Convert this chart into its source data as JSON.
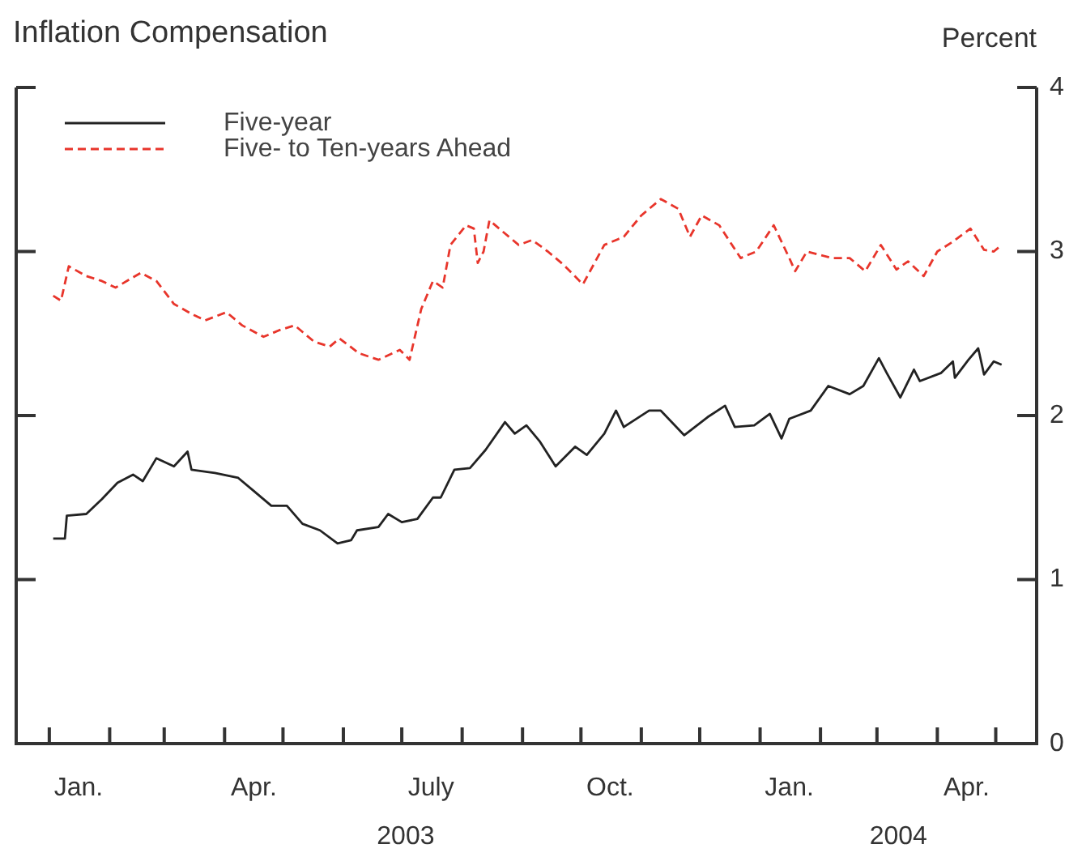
{
  "chart_data": {
    "type": "line",
    "title": "Inflation Compensation",
    "ylabel": "Percent",
    "xlim": [
      "2002-12-15",
      "2004-05-22"
    ],
    "ylim": [
      0,
      4
    ],
    "yticks": [
      0,
      1,
      2,
      3,
      4
    ],
    "xticks": [
      {
        "value": "2003-01-01",
        "label": null
      },
      {
        "value": "2003-01-16",
        "label": "Jan."
      },
      {
        "value": "2003-02-01",
        "label": null
      },
      {
        "value": "2003-03-01",
        "label": null
      },
      {
        "value": "2003-04-01",
        "label": null
      },
      {
        "value": "2003-04-16",
        "label": "Apr."
      },
      {
        "value": "2003-05-01",
        "label": null
      },
      {
        "value": "2003-06-01",
        "label": null
      },
      {
        "value": "2003-07-01",
        "label": null
      },
      {
        "value": "2003-07-16",
        "label": "July"
      },
      {
        "value": "2003-08-01",
        "label": null
      },
      {
        "value": "2003-09-01",
        "label": null
      },
      {
        "value": "2003-10-01",
        "label": null
      },
      {
        "value": "2003-10-16",
        "label": "Oct."
      },
      {
        "value": "2003-11-01",
        "label": null
      },
      {
        "value": "2003-12-01",
        "label": null
      },
      {
        "value": "2004-01-01",
        "label": null
      },
      {
        "value": "2004-01-16",
        "label": "Jan."
      },
      {
        "value": "2004-02-01",
        "label": null
      },
      {
        "value": "2004-03-01",
        "label": null
      },
      {
        "value": "2004-04-01",
        "label": null
      },
      {
        "value": "2004-04-16",
        "label": "Apr."
      },
      {
        "value": "2004-05-01",
        "label": null
      }
    ],
    "x2lim": [
      "2002-12-15",
      "2004-05-22"
    ],
    "x2ticks": [
      {
        "value": "2003-07-03",
        "label": "2003"
      },
      {
        "value": "2004-03-12",
        "label": "2004"
      }
    ],
    "grid": false,
    "legend": "top left",
    "marker": "none",
    "series": [
      {
        "name": "Five-year",
        "color": "#222222",
        "line_style": "solid",
        "x": [
          "2003-01-03",
          "2003-01-09",
          "2003-01-10",
          "2003-01-20",
          "2003-01-28",
          "2003-02-05",
          "2003-02-13",
          "2003-02-18",
          "2003-02-25",
          "2003-03-06",
          "2003-03-13",
          "2003-03-15",
          "2003-03-27",
          "2003-04-08",
          "2003-04-16",
          "2003-04-25",
          "2003-05-03",
          "2003-05-11",
          "2003-05-20",
          "2003-05-29",
          "2003-06-05",
          "2003-06-08",
          "2003-06-19",
          "2003-06-24",
          "2003-07-01",
          "2003-07-09",
          "2003-07-17",
          "2003-07-21",
          "2003-07-28",
          "2003-08-05",
          "2003-08-13",
          "2003-08-23",
          "2003-08-28",
          "2003-09-03",
          "2003-09-10",
          "2003-09-18",
          "2003-09-28",
          "2003-10-04",
          "2003-10-13",
          "2003-10-19",
          "2003-10-23",
          "2003-11-05",
          "2003-11-11",
          "2003-11-23",
          "2003-12-05",
          "2003-12-14",
          "2003-12-19",
          "2003-12-29",
          "2004-01-06",
          "2004-01-12",
          "2004-01-16",
          "2004-01-27",
          "2004-02-05",
          "2004-02-16",
          "2004-02-23",
          "2004-03-02",
          "2004-03-06",
          "2004-03-13",
          "2004-03-20",
          "2004-03-23",
          "2004-04-03",
          "2004-04-09",
          "2004-04-10",
          "2004-04-17",
          "2004-04-22",
          "2004-04-25",
          "2004-04-30",
          "2004-05-04"
        ],
        "values": [
          1.25,
          1.25,
          1.39,
          1.4,
          1.49,
          1.59,
          1.64,
          1.6,
          1.74,
          1.69,
          1.78,
          1.67,
          1.65,
          1.62,
          1.54,
          1.45,
          1.45,
          1.34,
          1.3,
          1.22,
          1.24,
          1.3,
          1.32,
          1.4,
          1.35,
          1.37,
          1.5,
          1.5,
          1.67,
          1.68,
          1.79,
          1.96,
          1.89,
          1.94,
          1.84,
          1.69,
          1.81,
          1.76,
          1.89,
          2.03,
          1.93,
          2.03,
          2.03,
          1.88,
          1.99,
          2.06,
          1.93,
          1.94,
          2.01,
          1.86,
          1.98,
          2.03,
          2.18,
          2.13,
          2.18,
          2.35,
          2.26,
          2.11,
          2.28,
          2.21,
          2.26,
          2.33,
          2.23,
          2.34,
          2.41,
          2.25,
          2.33,
          2.31
        ]
      },
      {
        "name": "Five- to Ten-years Ahead",
        "color": "#e8352b",
        "line_style": "dashed",
        "x": [
          "2003-01-03",
          "2003-01-07",
          "2003-01-11",
          "2003-01-20",
          "2003-01-28",
          "2003-02-04",
          "2003-02-17",
          "2003-02-25",
          "2003-03-06",
          "2003-03-15",
          "2003-03-22",
          "2003-04-02",
          "2003-04-10",
          "2003-04-21",
          "2003-04-29",
          "2003-05-07",
          "2003-05-17",
          "2003-05-25",
          "2003-05-30",
          "2003-06-09",
          "2003-06-19",
          "2003-06-30",
          "2003-07-05",
          "2003-07-11",
          "2003-07-17",
          "2003-07-22",
          "2003-07-26",
          "2003-08-03",
          "2003-08-07",
          "2003-08-09",
          "2003-08-12",
          "2003-08-15",
          "2003-08-23",
          "2003-08-30",
          "2003-09-06",
          "2003-09-14",
          "2003-09-22",
          "2003-10-02",
          "2003-10-13",
          "2003-10-23",
          "2003-11-01",
          "2003-11-11",
          "2003-11-20",
          "2003-11-26",
          "2003-12-02",
          "2003-12-11",
          "2003-12-22",
          "2003-12-30",
          "2004-01-08",
          "2004-01-16",
          "2004-01-19",
          "2004-01-25",
          "2004-02-07",
          "2004-02-16",
          "2004-02-24",
          "2004-03-03",
          "2004-03-11",
          "2004-03-17",
          "2004-03-25",
          "2004-04-01",
          "2004-04-09",
          "2004-04-18",
          "2004-04-25",
          "2004-04-30",
          "2004-05-04"
        ],
        "values": [
          2.73,
          2.7,
          2.91,
          2.85,
          2.82,
          2.78,
          2.87,
          2.82,
          2.68,
          2.62,
          2.58,
          2.63,
          2.55,
          2.48,
          2.52,
          2.55,
          2.45,
          2.42,
          2.47,
          2.38,
          2.34,
          2.4,
          2.34,
          2.65,
          2.82,
          2.78,
          3.04,
          3.16,
          3.14,
          2.93,
          3.0,
          3.19,
          3.11,
          3.04,
          3.07,
          3.0,
          2.92,
          2.8,
          3.04,
          3.09,
          3.22,
          3.32,
          3.26,
          3.09,
          3.22,
          3.16,
          2.96,
          3.0,
          3.16,
          2.96,
          2.88,
          3.0,
          2.96,
          2.96,
          2.88,
          3.04,
          2.89,
          2.94,
          2.85,
          3.0,
          3.06,
          3.14,
          3.01,
          3.0,
          3.04
        ]
      }
    ]
  }
}
